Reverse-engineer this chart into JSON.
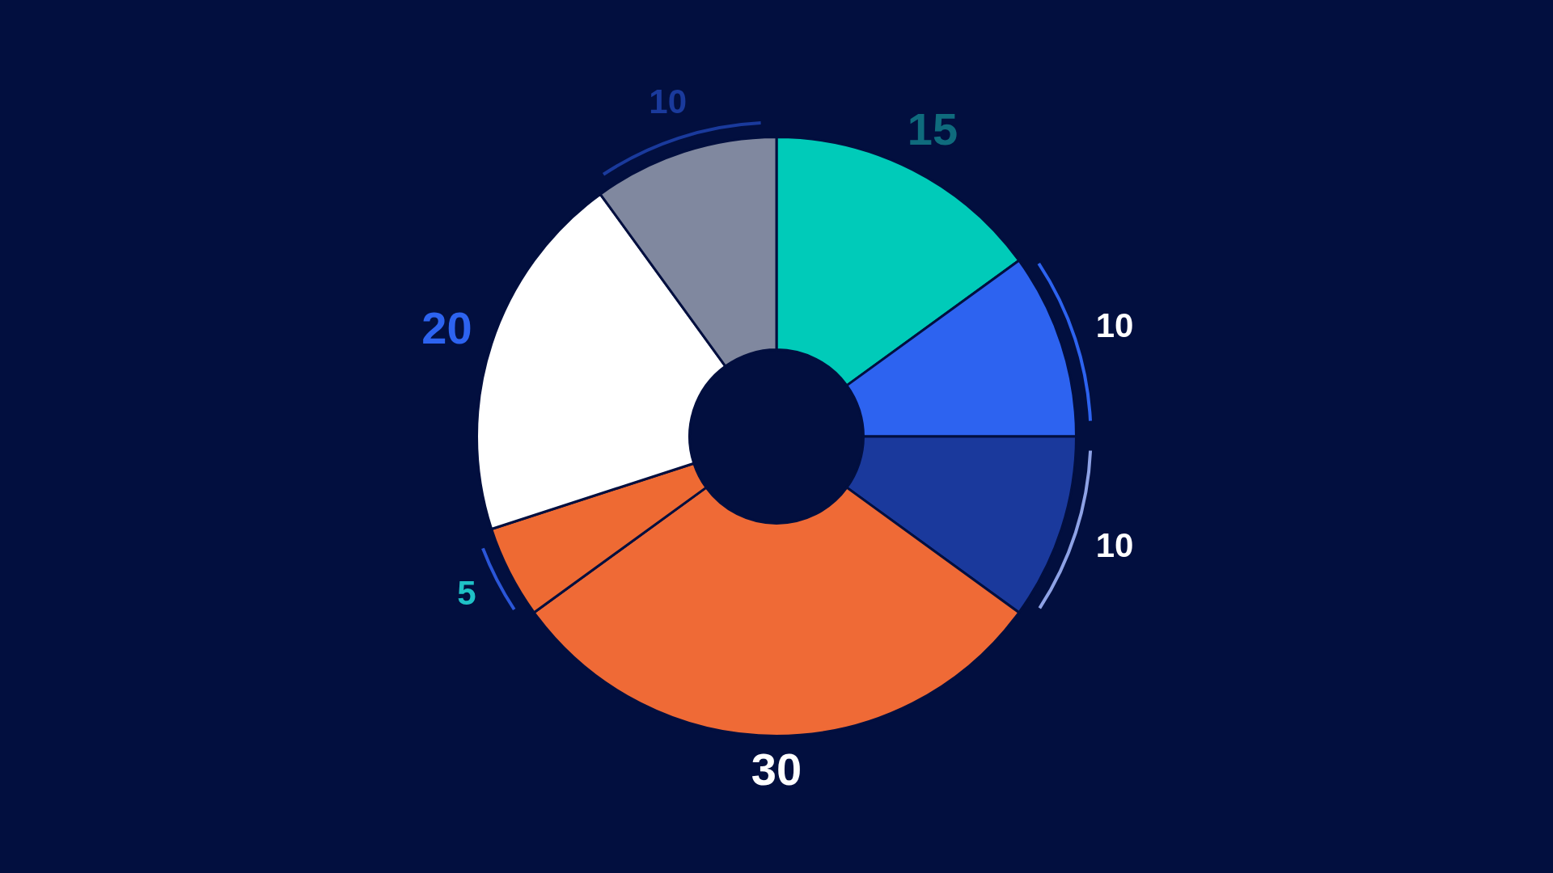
{
  "chart_data": {
    "type": "donut",
    "categories": [
      null,
      null,
      null,
      null,
      null,
      null,
      null
    ],
    "values": [
      15,
      10,
      10,
      30,
      5,
      20,
      10
    ],
    "colors": [
      "#00cbb9",
      "#2d63f0",
      "#1a399c",
      "#ef6a36",
      "#ee6a33",
      "#ffffff",
      "#80889f"
    ],
    "data_labels": true
  }
}
